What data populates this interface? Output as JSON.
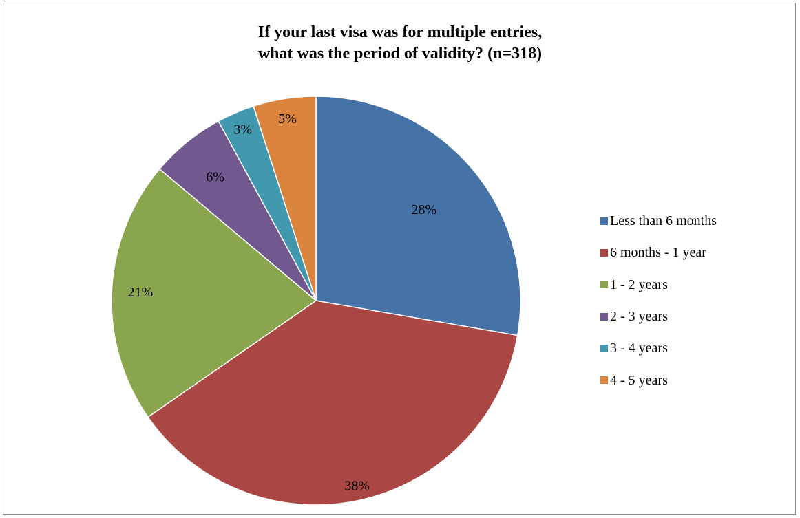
{
  "chart_data": {
    "type": "pie",
    "title_lines": [
      "If your last visa was for multiple entries,",
      "what was the period of validity? (n=318)"
    ],
    "slices": [
      {
        "label": "Less than 6 months",
        "value": 28,
        "display": "28%",
        "color": "#4572A7"
      },
      {
        "label": "6 months - 1 year",
        "value": 38,
        "display": "38%",
        "color": "#AA4643"
      },
      {
        "label": "1 - 2 years",
        "value": 21,
        "display": "21%",
        "color": "#89A54E"
      },
      {
        "label": "2 - 3 years",
        "value": 6,
        "display": "6%",
        "color": "#71588F"
      },
      {
        "label": "3 - 4 years",
        "value": 3,
        "display": "3%",
        "color": "#4198AF"
      },
      {
        "label": "4 - 5 years",
        "value": 5,
        "display": "5%",
        "color": "#DB843D"
      }
    ],
    "start_angle": "12 o'clock",
    "direction": "clockwise",
    "legend_position": "right"
  }
}
